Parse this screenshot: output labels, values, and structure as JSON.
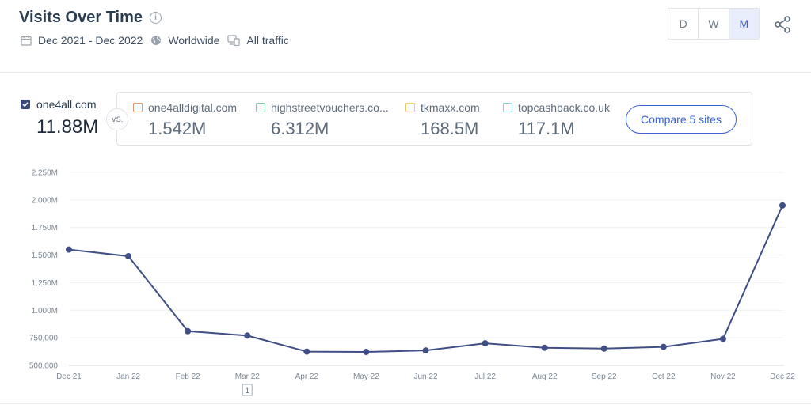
{
  "header": {
    "title": "Visits Over Time",
    "info_icon": "info-icon",
    "date_range": "Dec 2021 - Dec 2022",
    "region": "Worldwide",
    "traffic": "All traffic",
    "granularity": [
      "D",
      "W",
      "M"
    ],
    "granularity_selected": "M"
  },
  "main_site": {
    "name": "one4all.com",
    "value": "11.88M",
    "color": "#3a4a78"
  },
  "vs_label": "VS.",
  "competitors": [
    {
      "name": "one4alldigital.com",
      "value": "1.542M",
      "color": "#f0955e"
    },
    {
      "name": "highstreetvouchers.co...",
      "value": "6.312M",
      "color": "#7fd1a8"
    },
    {
      "name": "tkmaxx.com",
      "value": "168.5M",
      "color": "#f5c66c"
    },
    {
      "name": "topcashback.co.uk",
      "value": "117.1M",
      "color": "#7fd3e0"
    }
  ],
  "compare_button": "Compare 5 sites",
  "chart_data": {
    "type": "line",
    "categories": [
      "Dec 21",
      "Jan 22",
      "Feb 22",
      "Mar 22",
      "Apr 22",
      "May 22",
      "Jun 22",
      "Jul 22",
      "Aug 22",
      "Sep 22",
      "Oct 22",
      "Nov 22",
      "Dec 22"
    ],
    "series": [
      {
        "name": "one4all.com",
        "color": "#3f4f86",
        "values": [
          1550000,
          1490000,
          810000,
          770000,
          625000,
          622000,
          635000,
          700000,
          660000,
          652000,
          668000,
          740000,
          1950000
        ]
      }
    ],
    "y_ticks": [
      "500,000",
      "750,000",
      "1.000M",
      "1.250M",
      "1.500M",
      "1.750M",
      "2.000M",
      "2.250M"
    ],
    "ylim": [
      500000,
      2250000
    ],
    "grid": true,
    "annotation": {
      "category": "Mar 22",
      "label": "1"
    }
  }
}
